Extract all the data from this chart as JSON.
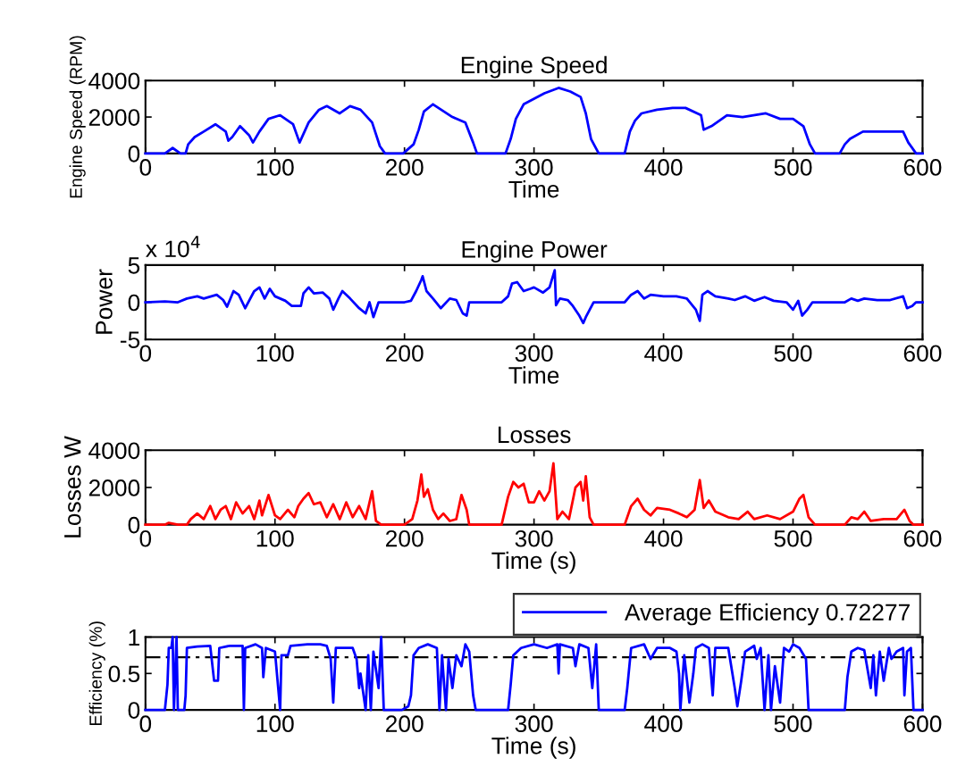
{
  "chart_data": [
    {
      "type": "line",
      "title": "Engine Speed",
      "xlabel": "Time",
      "ylabel": "Engine Speed (RPM)",
      "xlim": [
        0,
        600
      ],
      "xticks": [
        0,
        100,
        200,
        300,
        400,
        500,
        600
      ],
      "ylim": [
        0,
        4000
      ],
      "yticks": [
        0,
        2000,
        4000
      ],
      "grid": false,
      "legend": false,
      "series": [
        {
          "color": "#0000ff",
          "x": [
            0,
            15,
            21,
            27,
            31,
            33,
            38,
            45,
            54,
            62,
            64,
            67,
            73,
            80,
            83,
            88,
            95,
            104,
            114,
            119,
            126,
            134,
            140,
            150,
            158,
            166,
            175,
            181,
            185,
            199,
            207,
            211,
            215,
            222,
            237,
            247,
            253,
            256,
            278,
            282,
            286,
            292,
            308,
            319,
            328,
            336,
            340,
            344,
            350,
            370,
            374,
            378,
            383,
            395,
            407,
            417,
            429,
            431,
            437,
            449,
            461,
            479,
            490,
            500,
            508,
            513,
            517,
            536,
            540,
            544,
            554,
            585,
            589,
            595,
            600
          ],
          "values": [
            0,
            0,
            300,
            0,
            0,
            500,
            900,
            1200,
            1600,
            1200,
            700,
            900,
            1500,
            1000,
            600,
            1200,
            1900,
            2100,
            1600,
            600,
            1700,
            2400,
            2600,
            2200,
            2600,
            2400,
            1700,
            400,
            0,
            0,
            500,
            1300,
            2300,
            2700,
            2000,
            1700,
            600,
            0,
            0,
            800,
            1900,
            2700,
            3300,
            3600,
            3400,
            3100,
            2200,
            800,
            0,
            0,
            1200,
            1800,
            2200,
            2400,
            2500,
            2500,
            2100,
            1300,
            1500,
            2100,
            2000,
            2200,
            1900,
            1900,
            1500,
            500,
            0,
            0,
            500,
            800,
            1200,
            1200,
            600,
            0,
            0
          ]
        }
      ]
    },
    {
      "type": "line",
      "title": "Engine Power",
      "xlabel": "Time",
      "ylabel": "Power",
      "annotations": [
        "x 10$^{4}$"
      ],
      "xlim": [
        0,
        600
      ],
      "xticks": [
        0,
        100,
        200,
        300,
        400,
        500,
        600
      ],
      "ylim": [
        -5,
        5
      ],
      "yticks": [
        -5,
        0,
        5
      ],
      "grid": false,
      "legend": false,
      "series": [
        {
          "color": "#0000ff",
          "x": [
            0,
            15,
            25,
            32,
            40,
            45,
            55,
            60,
            63,
            68,
            72,
            77,
            84,
            88,
            92,
            96,
            100,
            108,
            113,
            120,
            122,
            126,
            130,
            137,
            142,
            145,
            149,
            152,
            158,
            165,
            170,
            173,
            176,
            180,
            200,
            205,
            209,
            213,
            214,
            217,
            222,
            228,
            235,
            240,
            245,
            248,
            250,
            275,
            280,
            283,
            287,
            292,
            297,
            300,
            307,
            312,
            316,
            317,
            320,
            326,
            330,
            335,
            338,
            340,
            343,
            346,
            370,
            375,
            380,
            385,
            390,
            400,
            410,
            418,
            425,
            428,
            430,
            434,
            440,
            450,
            455,
            463,
            470,
            478,
            485,
            495,
            500,
            504,
            507,
            511,
            515,
            540,
            545,
            550,
            555,
            565,
            575,
            585,
            588,
            592,
            595,
            600
          ],
          "values": [
            0,
            0.1,
            0,
            0.5,
            0.8,
            0.5,
            1.0,
            0.3,
            -0.6,
            1.5,
            1.0,
            -0.8,
            1.5,
            2.0,
            0.5,
            1.8,
            0.8,
            0.2,
            -0.5,
            -0.5,
            1.2,
            2.0,
            1.2,
            1.3,
            0.5,
            -1.0,
            0.5,
            1.5,
            0.5,
            -0.8,
            -1.5,
            0,
            -2.0,
            0,
            0,
            0.2,
            1.5,
            3.0,
            3.5,
            1.5,
            0.5,
            -0.8,
            0.5,
            0.3,
            -1.5,
            -1.8,
            0,
            0,
            0.8,
            2.5,
            2.7,
            1.5,
            1.8,
            2.0,
            1.3,
            2.0,
            4.3,
            -0.4,
            0.5,
            0.3,
            -0.5,
            -1.8,
            -2.8,
            -2.0,
            -1.0,
            0,
            0,
            1.0,
            1.5,
            0.5,
            1.0,
            0.8,
            0.8,
            0.5,
            -1.0,
            -2.5,
            1.0,
            1.5,
            0.8,
            0.5,
            0.3,
            0.8,
            0.2,
            0.7,
            0.2,
            0,
            -1.0,
            0.2,
            -1.8,
            -1.0,
            0,
            0,
            0.5,
            0.2,
            0.5,
            0.3,
            0.3,
            0.8,
            -0.8,
            -0.5,
            0,
            0
          ]
        }
      ]
    },
    {
      "type": "line",
      "title": "Losses",
      "xlabel": "Time (s)",
      "ylabel": "Losses W",
      "xlim": [
        0,
        600
      ],
      "xticks": [
        0,
        100,
        200,
        300,
        400,
        500,
        600
      ],
      "ylim": [
        0,
        4000
      ],
      "yticks": [
        0,
        2000,
        4000
      ],
      "grid": false,
      "legend": false,
      "series": [
        {
          "color": "#ff0000",
          "x": [
            0,
            15,
            18,
            25,
            32,
            35,
            40,
            45,
            50,
            54,
            58,
            62,
            66,
            70,
            75,
            80,
            84,
            88,
            90,
            95,
            100,
            104,
            110,
            115,
            118,
            122,
            126,
            130,
            135,
            140,
            145,
            150,
            155,
            160,
            165,
            170,
            175,
            178,
            182,
            200,
            206,
            210,
            213,
            215,
            218,
            222,
            226,
            230,
            235,
            240,
            244,
            248,
            250,
            275,
            280,
            284,
            288,
            292,
            296,
            300,
            304,
            308,
            312,
            315,
            318,
            322,
            327,
            332,
            336,
            338,
            340,
            343,
            346,
            370,
            375,
            380,
            385,
            390,
            395,
            405,
            412,
            418,
            424,
            428,
            431,
            435,
            440,
            450,
            458,
            465,
            470,
            480,
            490,
            500,
            505,
            508,
            512,
            517,
            540,
            545,
            550,
            555,
            560,
            570,
            580,
            586,
            590,
            593,
            600
          ],
          "values": [
            0,
            0,
            100,
            0,
            0,
            300,
            600,
            300,
            1000,
            300,
            800,
            1000,
            300,
            1200,
            600,
            1000,
            300,
            1300,
            500,
            1600,
            500,
            300,
            800,
            400,
            1000,
            1400,
            1700,
            1100,
            1200,
            400,
            1100,
            300,
            1200,
            400,
            1000,
            300,
            1800,
            200,
            0,
            0,
            300,
            1300,
            2700,
            1500,
            1900,
            800,
            300,
            600,
            200,
            300,
            1600,
            800,
            0,
            0,
            1500,
            2300,
            2000,
            2200,
            1200,
            1200,
            1800,
            1300,
            1800,
            3300,
            300,
            700,
            300,
            2000,
            2300,
            1300,
            2600,
            400,
            0,
            0,
            1000,
            1400,
            800,
            500,
            900,
            800,
            600,
            400,
            800,
            2400,
            900,
            1300,
            700,
            400,
            300,
            700,
            300,
            500,
            300,
            700,
            1400,
            1600,
            400,
            0,
            0,
            400,
            300,
            700,
            200,
            300,
            300,
            800,
            200,
            0,
            0
          ]
        }
      ]
    },
    {
      "type": "line",
      "xlabel": "Time (s)",
      "ylabel": "Efficiency (%)",
      "xlim": [
        0,
        600
      ],
      "xticks": [
        0,
        100,
        200,
        300,
        400,
        500,
        600
      ],
      "ylim": [
        0,
        1
      ],
      "yticks": [
        0,
        0.5,
        1
      ],
      "grid": false,
      "legend": "top right",
      "ref_lines": [
        {
          "axis": "y",
          "value": 0.72277,
          "color": "#000000",
          "line_style": "dashed"
        }
      ],
      "series": [
        {
          "name": "Average Efficiency 0.72277",
          "color": "#0000ff",
          "x": [
            0,
            15,
            17,
            18,
            20,
            21,
            22,
            24,
            25,
            30,
            31,
            32,
            40,
            50,
            53,
            56,
            57,
            65,
            75,
            76,
            77,
            85,
            90,
            91,
            93,
            100,
            104,
            105,
            110,
            112,
            125,
            135,
            140,
            143,
            145,
            147,
            160,
            163,
            165,
            166,
            170,
            172,
            174,
            176,
            180,
            182,
            184,
            198,
            203,
            205,
            207,
            211,
            218,
            225,
            227,
            229,
            232,
            234,
            237,
            240,
            244,
            247,
            250,
            253,
            255,
            280,
            282,
            284,
            290,
            300,
            310,
            318,
            319,
            320,
            330,
            332,
            335,
            342,
            345,
            348,
            350,
            370,
            372,
            375,
            385,
            390,
            395,
            405,
            410,
            412,
            413,
            416,
            420,
            423,
            425,
            430,
            435,
            438,
            440,
            450,
            455,
            457,
            460,
            463,
            470,
            472,
            475,
            478,
            481,
            483,
            486,
            490,
            493,
            497,
            500,
            505,
            510,
            512,
            530,
            540,
            542,
            545,
            550,
            555,
            560,
            562,
            564,
            567,
            570,
            574,
            576,
            580,
            585,
            586,
            588,
            591,
            593,
            600
          ],
          "values": [
            0,
            0,
            0.35,
            0.85,
            0.85,
            1.0,
            0,
            1.0,
            0,
            0,
            0.2,
            0.85,
            0.87,
            0.88,
            0.4,
            0.4,
            0.85,
            0.88,
            0.88,
            0,
            0.85,
            0.9,
            0.85,
            0.45,
            0.85,
            0.8,
            0,
            0.75,
            0.75,
            0.88,
            0.9,
            0.9,
            0.88,
            0.7,
            0.1,
            0.85,
            0.85,
            0.7,
            0.3,
            0.5,
            0,
            0.75,
            0,
            0.8,
            0.3,
            1.0,
            0,
            0,
            0.05,
            0.2,
            0.75,
            0.85,
            0.9,
            0.85,
            0,
            0.75,
            0,
            0.7,
            0.3,
            0.75,
            0.6,
            0.9,
            0.8,
            0.2,
            0,
            0,
            0.35,
            0.75,
            0.85,
            0.9,
            0.85,
            0.9,
            0.5,
            0.9,
            0.85,
            0.6,
            0.9,
            0.85,
            0.3,
            0.9,
            0,
            0,
            0.3,
            0.85,
            0.9,
            0.7,
            0.85,
            0.85,
            0.8,
            0.5,
            0,
            0.75,
            0.1,
            0.5,
            0.85,
            0.9,
            0.85,
            0.2,
            0.85,
            0.85,
            0.3,
            0.05,
            0.4,
            0.8,
            0.88,
            0.7,
            0.85,
            0,
            0.75,
            0,
            0.6,
            0.1,
            0.85,
            0.8,
            0.9,
            0.85,
            0.7,
            0,
            0,
            0,
            0.45,
            0.8,
            0.85,
            0.82,
            0.3,
            0.75,
            0.2,
            0.8,
            0.4,
            0.85,
            0.7,
            0.8,
            0.85,
            0.2,
            0.8,
            0.85,
            0,
            0
          ]
        }
      ]
    }
  ]
}
